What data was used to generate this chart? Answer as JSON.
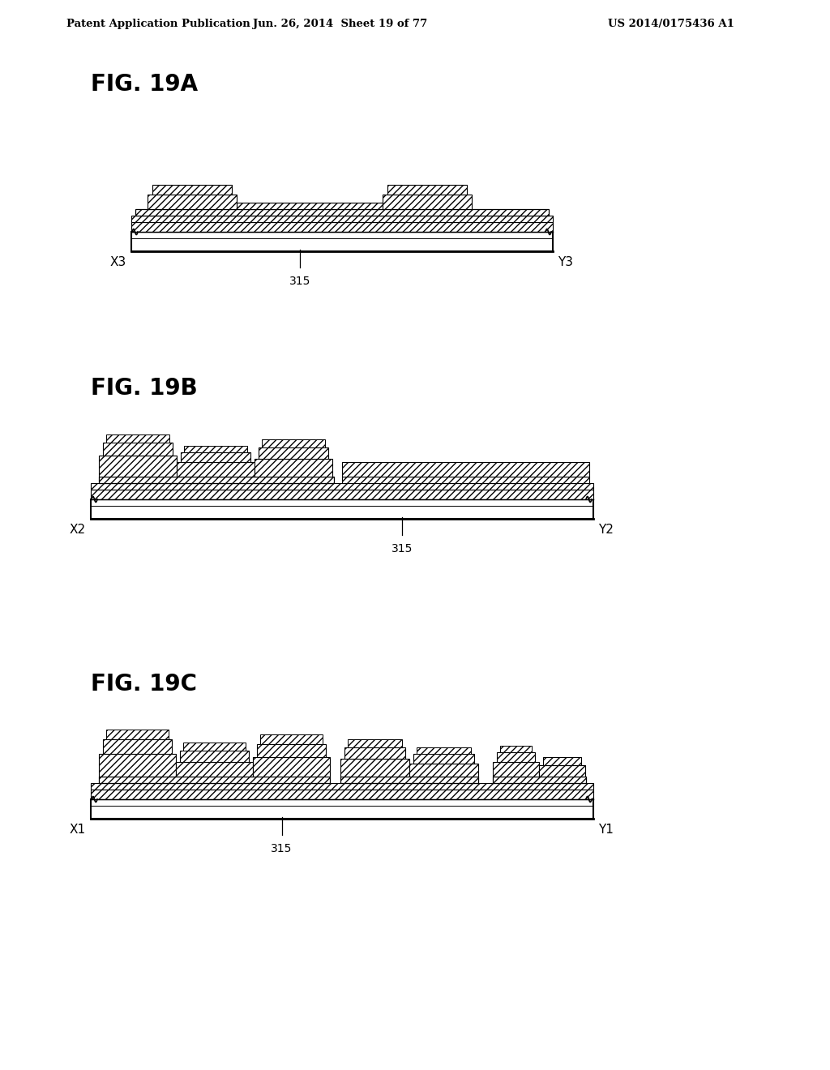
{
  "header_left": "Patent Application Publication",
  "header_mid": "Jun. 26, 2014  Sheet 19 of 77",
  "header_right": "US 2014/0175436 A1",
  "fig_labels": [
    "FIG. 19A",
    "FIG. 19B",
    "FIG. 19C"
  ],
  "x_labels": [
    "X1",
    "X2",
    "X3"
  ],
  "y_labels": [
    "Y1",
    "Y2",
    "Y3"
  ],
  "ref_num": "315",
  "bg_color": "#ffffff",
  "line_color": "#000000"
}
